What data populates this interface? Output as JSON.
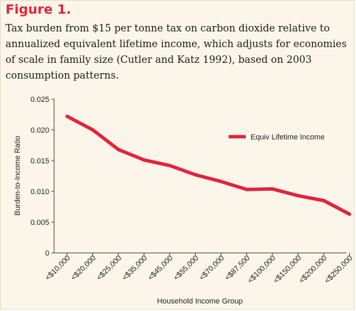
{
  "figure": {
    "label": "Figure 1.",
    "caption": "Tax burden from $15 per tonne tax on carbon dioxide relative to annualized equivalent lifetime income, which adjusts for economies of scale in family size (Cutler and Katz 1992), based on 2003 consumption patterns."
  },
  "colors": {
    "series": "#e2233b",
    "background": "#fbf6e9",
    "axis": "#444444"
  },
  "chart_data": {
    "type": "line",
    "title": "",
    "xlabel": "Household Income Group",
    "ylabel": "Burden-to-Income Ratio",
    "categories": [
      "<$10,000",
      "<$20,000",
      "<$25,000",
      "<$35,000",
      "<$45,000",
      "<$55,000",
      "<$70,000",
      "<$87,500",
      "<$100,000",
      "<$150,000",
      "<$200,000",
      "<$250,000"
    ],
    "series": [
      {
        "name": "Equiv Lifetime Income",
        "values": [
          0.0222,
          0.02,
          0.0168,
          0.0151,
          0.0142,
          0.0127,
          0.0116,
          0.0103,
          0.0104,
          0.0093,
          0.0085,
          0.0063
        ]
      }
    ],
    "ylim": [
      0,
      0.025
    ],
    "yticks": [
      "0",
      "0.005",
      "0.010",
      "0.015",
      "0.020",
      "0.025"
    ],
    "grid": false,
    "legend": "top-right"
  }
}
